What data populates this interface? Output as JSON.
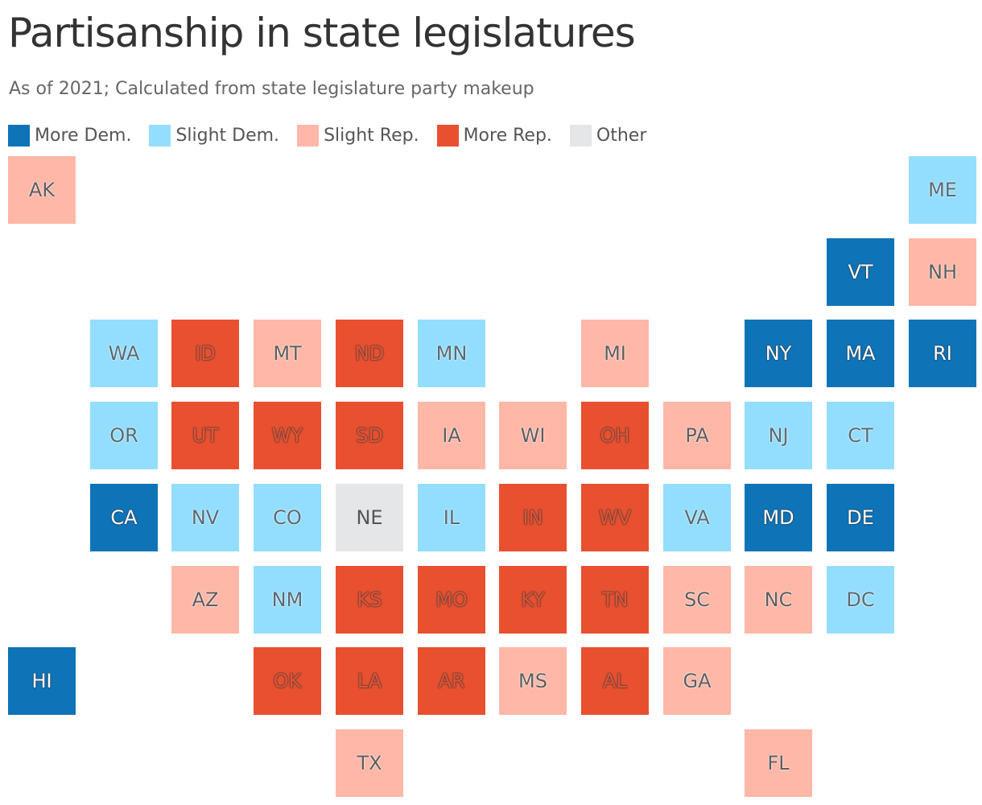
{
  "title": "Partisanship in state legislatures",
  "subtitle": "As of 2021; Calculated from state legislature party makeup",
  "colors": {
    "more_dem": "#0f73b8",
    "slight_dem": "#93ddff",
    "slight_rep": "#ffb7a8",
    "more_rep": "#e8502f",
    "other": "#e5e6e8"
  },
  "legend": [
    {
      "key": "more_dem",
      "label": "More Dem."
    },
    {
      "key": "slight_dem",
      "label": "Slight Dem."
    },
    {
      "key": "slight_rep",
      "label": "Slight Rep."
    },
    {
      "key": "more_rep",
      "label": "More Rep."
    },
    {
      "key": "other",
      "label": "Other"
    }
  ],
  "states": [
    {
      "abbr": "AK",
      "col": 0,
      "row": 0,
      "cat": "slight_rep"
    },
    {
      "abbr": "ME",
      "col": 11,
      "row": 0,
      "cat": "slight_dem"
    },
    {
      "abbr": "VT",
      "col": 10,
      "row": 1,
      "cat": "more_dem"
    },
    {
      "abbr": "NH",
      "col": 11,
      "row": 1,
      "cat": "slight_rep"
    },
    {
      "abbr": "WA",
      "col": 1,
      "row": 2,
      "cat": "slight_dem"
    },
    {
      "abbr": "ID",
      "col": 2,
      "row": 2,
      "cat": "more_rep"
    },
    {
      "abbr": "MT",
      "col": 3,
      "row": 2,
      "cat": "slight_rep"
    },
    {
      "abbr": "ND",
      "col": 4,
      "row": 2,
      "cat": "more_rep"
    },
    {
      "abbr": "MN",
      "col": 5,
      "row": 2,
      "cat": "slight_dem"
    },
    {
      "abbr": "MI",
      "col": 7,
      "row": 2,
      "cat": "slight_rep"
    },
    {
      "abbr": "NY",
      "col": 9,
      "row": 2,
      "cat": "more_dem"
    },
    {
      "abbr": "MA",
      "col": 10,
      "row": 2,
      "cat": "more_dem"
    },
    {
      "abbr": "RI",
      "col": 11,
      "row": 2,
      "cat": "more_dem"
    },
    {
      "abbr": "OR",
      "col": 1,
      "row": 3,
      "cat": "slight_dem"
    },
    {
      "abbr": "UT",
      "col": 2,
      "row": 3,
      "cat": "more_rep"
    },
    {
      "abbr": "WY",
      "col": 3,
      "row": 3,
      "cat": "more_rep"
    },
    {
      "abbr": "SD",
      "col": 4,
      "row": 3,
      "cat": "more_rep"
    },
    {
      "abbr": "IA",
      "col": 5,
      "row": 3,
      "cat": "slight_rep"
    },
    {
      "abbr": "WI",
      "col": 6,
      "row": 3,
      "cat": "slight_rep"
    },
    {
      "abbr": "OH",
      "col": 7,
      "row": 3,
      "cat": "more_rep"
    },
    {
      "abbr": "PA",
      "col": 8,
      "row": 3,
      "cat": "slight_rep"
    },
    {
      "abbr": "NJ",
      "col": 9,
      "row": 3,
      "cat": "slight_dem"
    },
    {
      "abbr": "CT",
      "col": 10,
      "row": 3,
      "cat": "slight_dem"
    },
    {
      "abbr": "CA",
      "col": 1,
      "row": 4,
      "cat": "more_dem"
    },
    {
      "abbr": "NV",
      "col": 2,
      "row": 4,
      "cat": "slight_dem"
    },
    {
      "abbr": "CO",
      "col": 3,
      "row": 4,
      "cat": "slight_dem"
    },
    {
      "abbr": "NE",
      "col": 4,
      "row": 4,
      "cat": "other"
    },
    {
      "abbr": "IL",
      "col": 5,
      "row": 4,
      "cat": "slight_dem"
    },
    {
      "abbr": "IN",
      "col": 6,
      "row": 4,
      "cat": "more_rep"
    },
    {
      "abbr": "WV",
      "col": 7,
      "row": 4,
      "cat": "more_rep"
    },
    {
      "abbr": "VA",
      "col": 8,
      "row": 4,
      "cat": "slight_dem"
    },
    {
      "abbr": "MD",
      "col": 9,
      "row": 4,
      "cat": "more_dem"
    },
    {
      "abbr": "DE",
      "col": 10,
      "row": 4,
      "cat": "more_dem"
    },
    {
      "abbr": "AZ",
      "col": 2,
      "row": 5,
      "cat": "slight_rep"
    },
    {
      "abbr": "NM",
      "col": 3,
      "row": 5,
      "cat": "slight_dem"
    },
    {
      "abbr": "KS",
      "col": 4,
      "row": 5,
      "cat": "more_rep"
    },
    {
      "abbr": "MO",
      "col": 5,
      "row": 5,
      "cat": "more_rep"
    },
    {
      "abbr": "KY",
      "col": 6,
      "row": 5,
      "cat": "more_rep"
    },
    {
      "abbr": "TN",
      "col": 7,
      "row": 5,
      "cat": "more_rep"
    },
    {
      "abbr": "SC",
      "col": 8,
      "row": 5,
      "cat": "slight_rep"
    },
    {
      "abbr": "NC",
      "col": 9,
      "row": 5,
      "cat": "slight_rep"
    },
    {
      "abbr": "DC",
      "col": 10,
      "row": 5,
      "cat": "slight_dem"
    },
    {
      "abbr": "HI",
      "col": 0,
      "row": 6,
      "cat": "more_dem"
    },
    {
      "abbr": "OK",
      "col": 3,
      "row": 6,
      "cat": "more_rep"
    },
    {
      "abbr": "LA",
      "col": 4,
      "row": 6,
      "cat": "more_rep"
    },
    {
      "abbr": "AR",
      "col": 5,
      "row": 6,
      "cat": "more_rep"
    },
    {
      "abbr": "MS",
      "col": 6,
      "row": 6,
      "cat": "slight_rep"
    },
    {
      "abbr": "AL",
      "col": 7,
      "row": 6,
      "cat": "more_rep"
    },
    {
      "abbr": "GA",
      "col": 8,
      "row": 6,
      "cat": "slight_rep"
    },
    {
      "abbr": "TX",
      "col": 4,
      "row": 7,
      "cat": "slight_rep"
    },
    {
      "abbr": "FL",
      "col": 9,
      "row": 7,
      "cat": "slight_rep"
    }
  ]
}
